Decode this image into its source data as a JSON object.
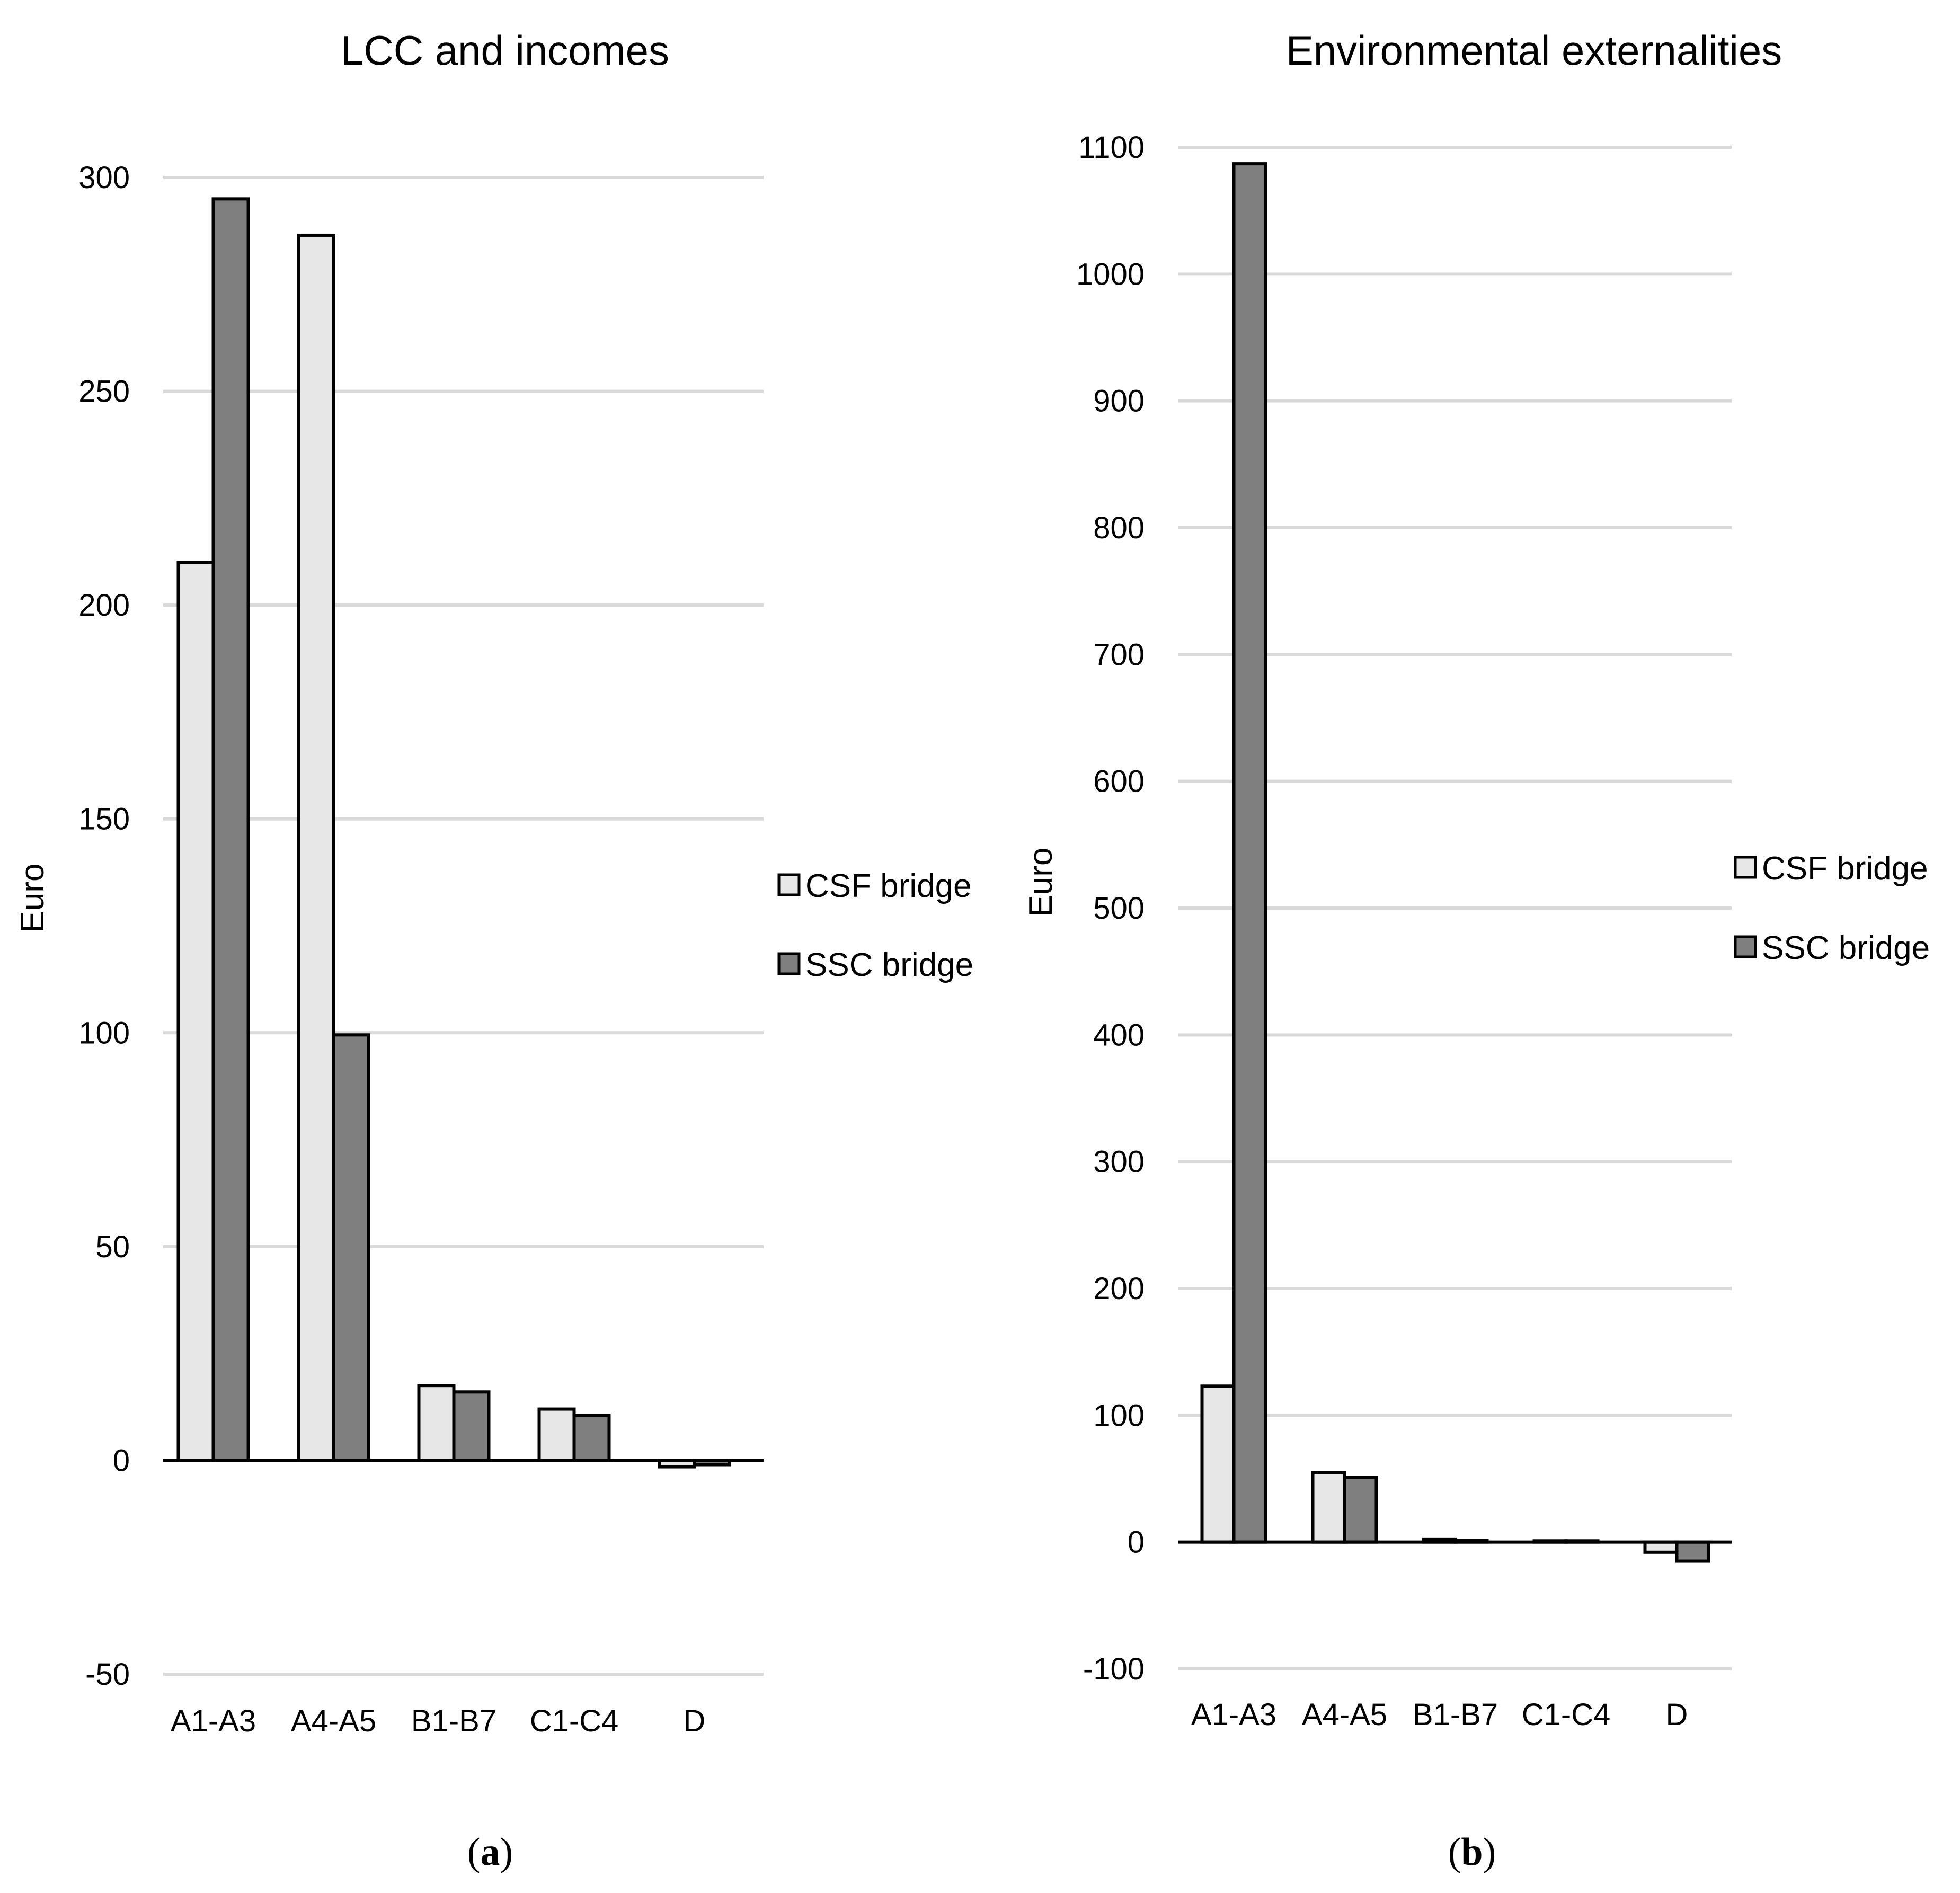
{
  "colors": {
    "csf": "#e7e7e7",
    "ssc": "#7f7f7f",
    "grid": "#d9d9d9",
    "outline": "#000000"
  },
  "chart_data": [
    {
      "type": "bar",
      "title": "LCC and incomes",
      "ylabel": "Euro",
      "xlabel": "",
      "categories": [
        "A1-A3",
        "A4-A5",
        "B1-B7",
        "C1-C4",
        "D"
      ],
      "series": [
        {
          "name": "CSF bridge",
          "values": [
            210,
            286.5,
            17.5,
            12,
            -1.5
          ]
        },
        {
          "name": "SSC bridge",
          "values": [
            295,
            99.5,
            16,
            10.5,
            -1
          ]
        }
      ],
      "ylim": [
        -50,
        300
      ],
      "yticks": [
        300,
        250,
        200,
        150,
        100,
        50,
        0,
        -50
      ],
      "ytick_labels": [
        "300",
        "250",
        "200",
        "150",
        "100",
        "50",
        "0",
        "-50"
      ],
      "grid": true,
      "legend": "right",
      "caption": {
        "open": "(",
        "letter": "a",
        "close": ")"
      }
    },
    {
      "type": "bar",
      "title": "Environmental externalities",
      "ylabel": "Euro",
      "xlabel": "",
      "categories": [
        "A1-A3",
        "A4-A5",
        "B1-B7",
        "C1-C4",
        "D"
      ],
      "series": [
        {
          "name": "CSF bridge",
          "values": [
            123,
            55,
            2,
            1,
            -8
          ]
        },
        {
          "name": "SSC bridge",
          "values": [
            1087,
            51,
            1.5,
            1,
            -15
          ]
        }
      ],
      "ylim": [
        -100,
        1100
      ],
      "yticks": [
        1100,
        1000,
        900,
        800,
        700,
        600,
        500,
        400,
        300,
        200,
        100,
        0,
        -100
      ],
      "ytick_labels": [
        "1100",
        "1000",
        "900",
        "800",
        "700",
        "600",
        "500",
        "400",
        "300",
        "200",
        "100",
        "0",
        "-100"
      ],
      "grid": true,
      "legend": "right",
      "caption": {
        "open": "(",
        "letter": "b",
        "close": ")"
      }
    }
  ]
}
